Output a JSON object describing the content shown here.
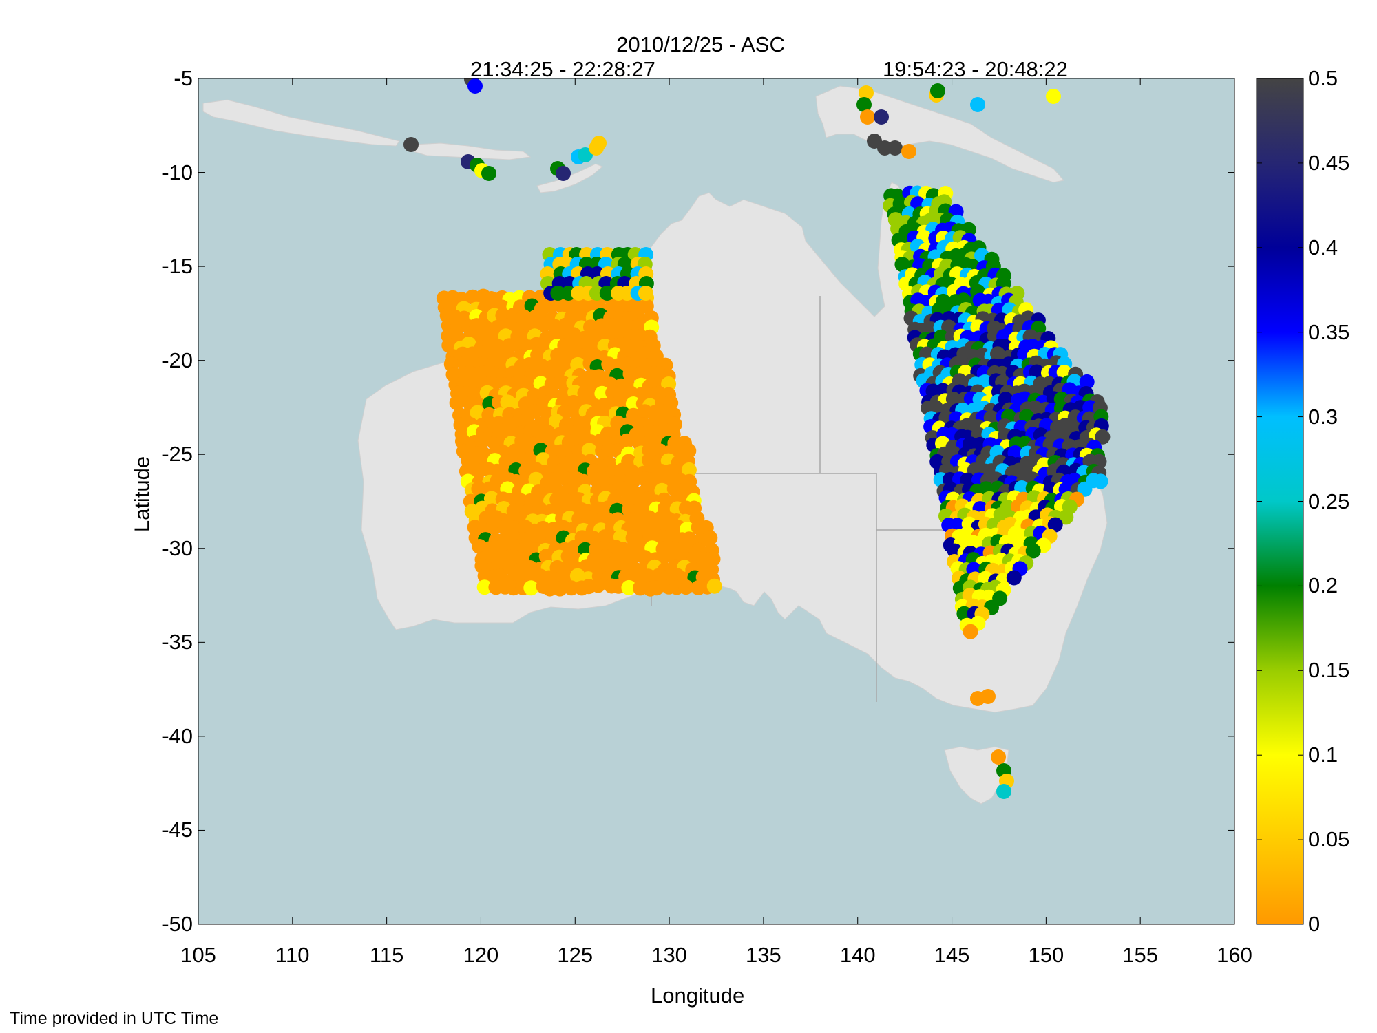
{
  "title": "2010/12/25 - ASC",
  "pass_labels": [
    "21:34:25 - 22:28:27",
    "19:54:23 - 20:48:22"
  ],
  "footnote": "Time provided in UTC Time",
  "map": {
    "xlabel": "Longitude",
    "ylabel": "Latitude",
    "xlim": [
      105,
      160
    ],
    "ylim": [
      -50,
      -5
    ],
    "xticks": [
      "105",
      "110",
      "115",
      "120",
      "125",
      "130",
      "135",
      "140",
      "145",
      "150",
      "155",
      "160"
    ],
    "yticks": [
      "-5",
      "-10",
      "-15",
      "-20",
      "-25",
      "-30",
      "-35",
      "-40",
      "-45",
      "-50"
    ],
    "ocean_color": "#b9d1d6",
    "land_color": "#e4e4e4",
    "state_border_color": "#a8a8a8"
  },
  "colorbar": {
    "range": [
      0,
      0.5
    ],
    "ticks": [
      "0.5",
      "0.45",
      "0.4",
      "0.35",
      "0.3",
      "0.25",
      "0.2",
      "0.15",
      "0.1",
      "0.05",
      "0"
    ],
    "colors": [
      "#ff9900",
      "#ffcc00",
      "#ffff00",
      "#9acd00",
      "#008000",
      "#00c8c8",
      "#00bfff",
      "#0000ff",
      "#000099",
      "#262673",
      "#444444"
    ]
  }
}
